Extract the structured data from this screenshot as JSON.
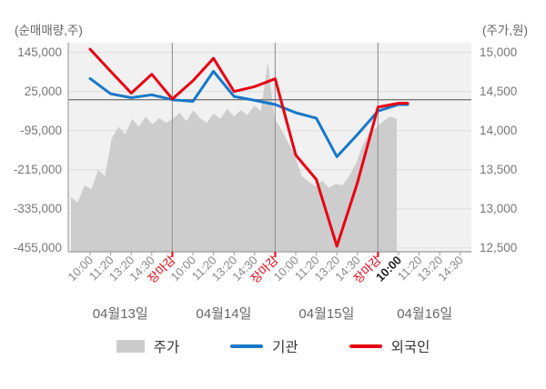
{
  "chart_data": {
    "type": "area",
    "description_note": "intraday net-buying-volume lines (left axis) over stock price area (right axis)",
    "left_axis": {
      "title": "(순매매량,주)",
      "tick_labels": [
        "145,000",
        "25,000",
        "-95,000",
        "-215,000",
        "-335,000",
        "-455,000"
      ],
      "ticks": [
        145000,
        25000,
        -95000,
        -215000,
        -335000,
        -455000
      ],
      "min": -455000,
      "max": 145000,
      "zero_line": 0
    },
    "right_axis": {
      "title": "(주가,원)",
      "tick_labels": [
        "15,000",
        "14,500",
        "14,000",
        "13,500",
        "13,000",
        "12,500"
      ],
      "ticks": [
        15000,
        14500,
        14000,
        13500,
        13000,
        12500
      ],
      "min": 12500,
      "max": 15000
    },
    "days": [
      {
        "label": "04월13일",
        "times": [
          "10:00",
          "11:20",
          "13:20",
          "14:30",
          "장마감"
        ]
      },
      {
        "label": "04월14일",
        "times": [
          "10:00",
          "11:20",
          "13:20",
          "14:30",
          "장마감"
        ]
      },
      {
        "label": "04월15일",
        "times": [
          "10:00",
          "11:20",
          "13:20",
          "14:30",
          "장마감"
        ]
      },
      {
        "label": "04월16일",
        "times": [
          "10:00",
          "11:20",
          "13:20",
          "14:30"
        ]
      }
    ],
    "close_label": "장마감",
    "current_time_label": {
      "day_index": 3,
      "time": "10:00"
    },
    "grid": true,
    "legend_position": "bottom",
    "series": [
      {
        "name": "주가",
        "type": "area",
        "axis": "right",
        "color": "#cdcdcd",
        "values": [
          13150,
          13080,
          13300,
          13250,
          13500,
          13420,
          13900,
          14050,
          13950,
          14150,
          14050,
          14180,
          14080,
          14160,
          14100,
          14150,
          14230,
          14120,
          14260,
          14160,
          14100,
          14220,
          14150,
          14280,
          14180,
          14260,
          14200,
          14320,
          14250,
          14880,
          14150,
          14010,
          13850,
          13680,
          13420,
          13350,
          13290,
          13360,
          13270,
          13320,
          13300,
          13420,
          13580,
          13820,
          13980,
          14040,
          14120,
          14180,
          14150
        ]
      },
      {
        "name": "기관",
        "type": "line",
        "axis": "left",
        "color": "#1778c8",
        "values": [
          65000,
          18000,
          6000,
          15000,
          0,
          -5000,
          87000,
          10000,
          -2000,
          -15000,
          -40000,
          -57000,
          -175000,
          -107000,
          -35000,
          -15000
        ]
      },
      {
        "name": "외국인",
        "type": "line",
        "axis": "left",
        "color": "#e60012",
        "values": [
          155000,
          87000,
          20000,
          78000,
          2000,
          58000,
          127000,
          25000,
          40000,
          64000,
          -170000,
          -245000,
          -450000,
          -255000,
          -23000,
          -11000
        ]
      }
    ]
  },
  "legend": {
    "items": [
      {
        "label": "주가",
        "type": "area",
        "color": "#cccccc"
      },
      {
        "label": "기관",
        "type": "line",
        "color": "#1778c8"
      },
      {
        "label": "외국인",
        "type": "line",
        "color": "#e60012"
      }
    ]
  },
  "colors": {
    "plot_bg": "#f1f1f1",
    "gridline": "#dedede",
    "day_separator": "#999999",
    "zero_line": "#787878",
    "axis_line": "#a8a8a8",
    "tick_text": "#888888",
    "close_text": "#e60012",
    "current_text": "#222222",
    "day_text": "#666666"
  }
}
